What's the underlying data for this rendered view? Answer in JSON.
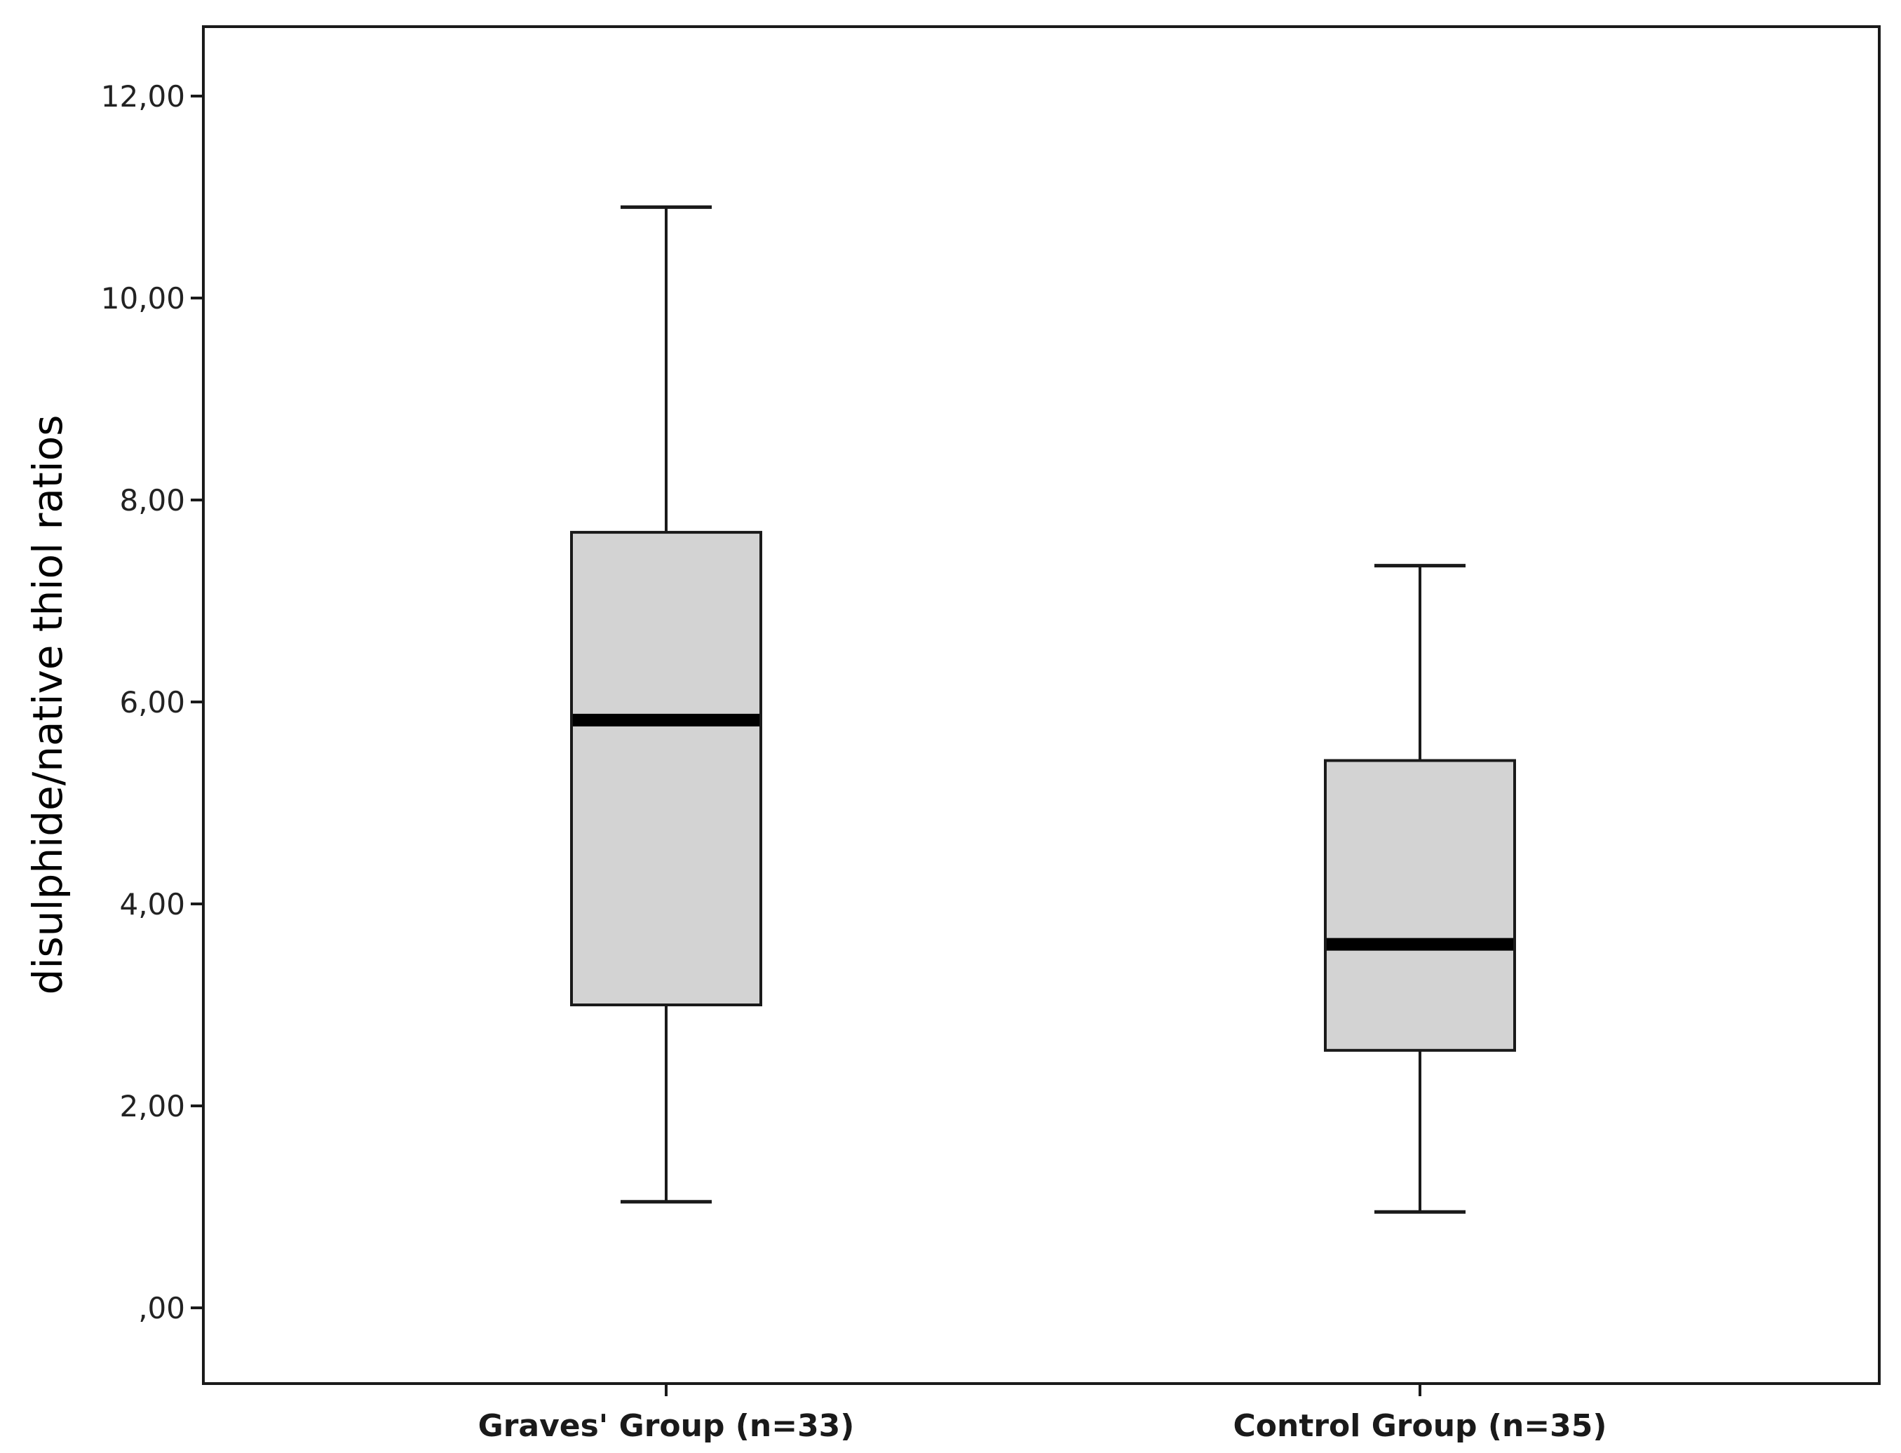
{
  "chart_data": {
    "type": "boxplot",
    "title": "",
    "xlabel": "",
    "ylabel": "disulphide/native thiol ratios",
    "ylim": [
      -0.65,
      12.65
    ],
    "yticks": [
      {
        "value": 0,
        "label": ",00"
      },
      {
        "value": 2,
        "label": "2,00"
      },
      {
        "value": 4,
        "label": "4,00"
      },
      {
        "value": 6,
        "label": "6,00"
      },
      {
        "value": 8,
        "label": "8,00"
      },
      {
        "value": 10,
        "label": "10,00"
      },
      {
        "value": 12,
        "label": "12,00"
      }
    ],
    "grid": false,
    "categories": [
      "Graves' Group (n=33)",
      "Control Group (n=35)"
    ],
    "boxes": [
      {
        "category": "Graves' Group (n=33)",
        "min": 1.05,
        "q1": 3.0,
        "median": 5.82,
        "q3": 7.68,
        "max": 10.9
      },
      {
        "category": "Control Group (n=35)",
        "min": 0.95,
        "q1": 2.55,
        "median": 3.6,
        "q3": 5.42,
        "max": 7.35
      }
    ],
    "colors": {
      "box_fill": "#d3d3d3",
      "stroke": "#1a1a1a",
      "median": "#000000"
    }
  }
}
